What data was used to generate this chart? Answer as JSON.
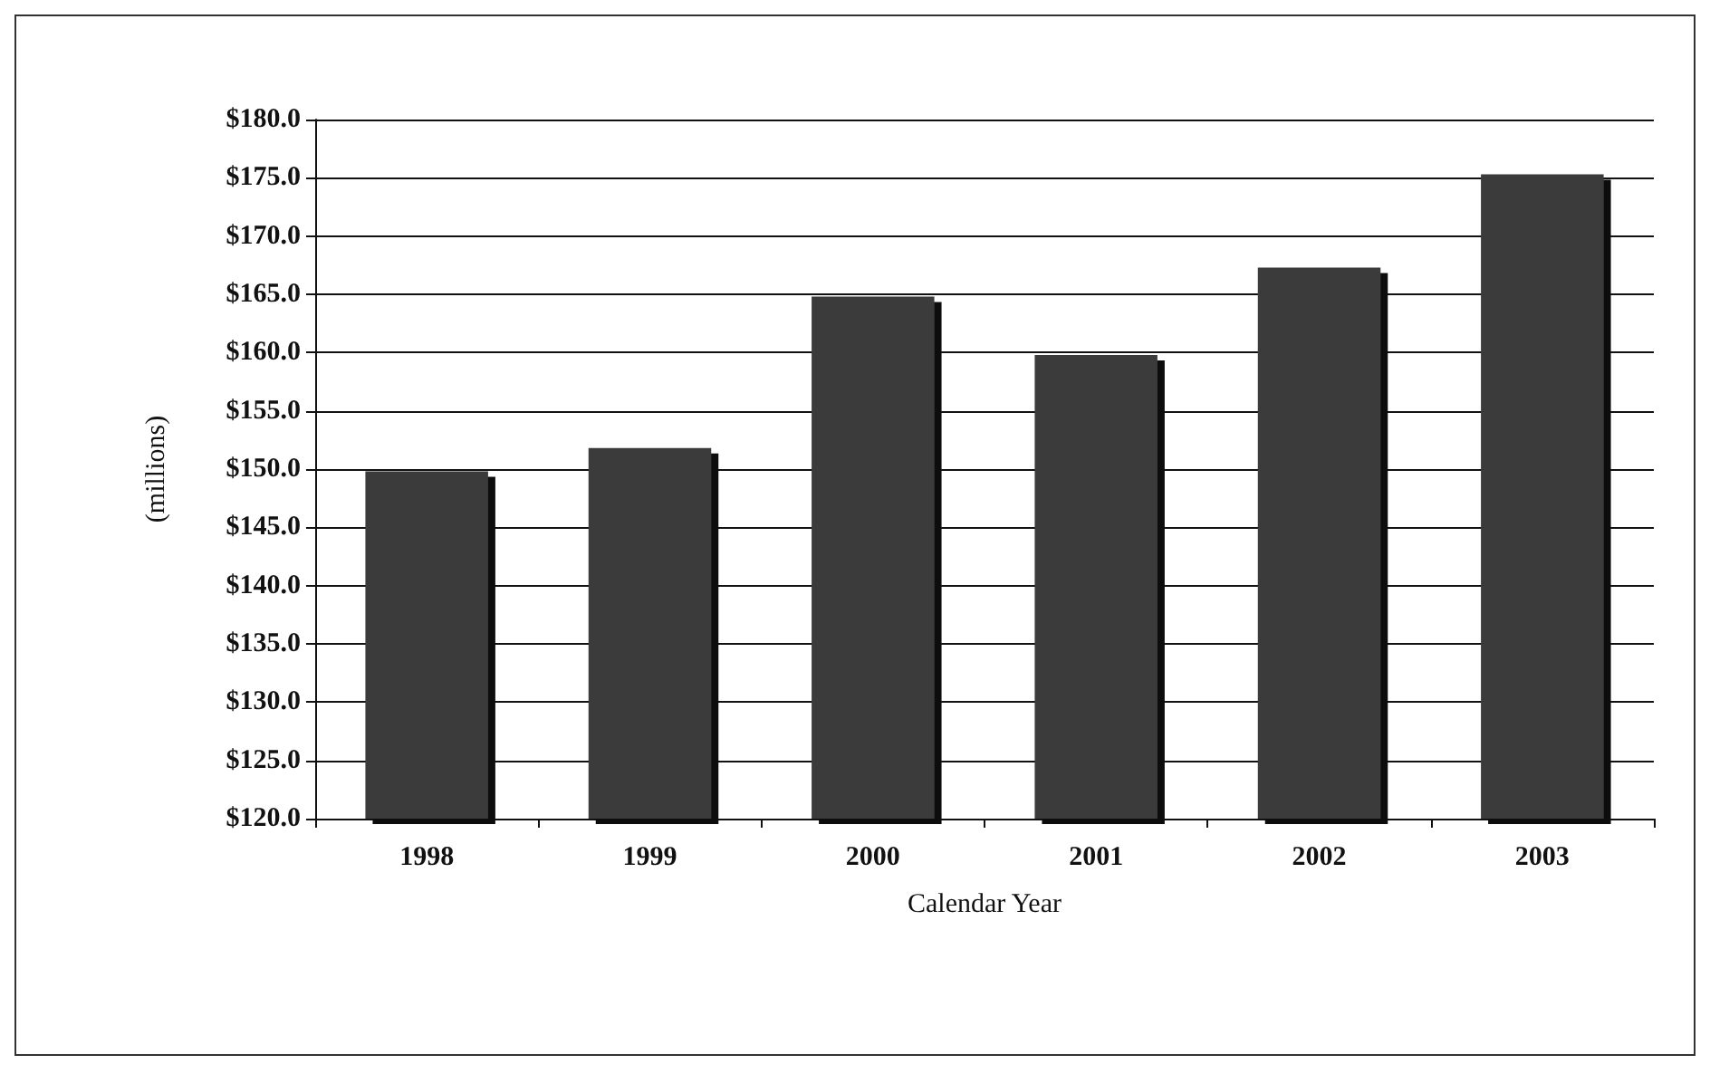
{
  "chart_data": {
    "type": "bar",
    "xlabel": "Calendar Year",
    "ylabel": "(millions)",
    "categories": [
      "1998",
      "1999",
      "2000",
      "2001",
      "2002",
      "2003"
    ],
    "values": [
      149.8,
      151.8,
      164.8,
      159.8,
      167.3,
      175.3
    ],
    "color": "#3a3a3a",
    "ylim": [
      120,
      180
    ],
    "yticks": [
      {
        "value": 120,
        "label": "$120.0"
      },
      {
        "value": 125,
        "label": "$125.0"
      },
      {
        "value": 130,
        "label": "$130.0"
      },
      {
        "value": 135,
        "label": "$135.0"
      },
      {
        "value": 140,
        "label": "$140.0"
      },
      {
        "value": 145,
        "label": "$145.0"
      },
      {
        "value": 150,
        "label": "$150.0"
      },
      {
        "value": 155,
        "label": "$155.0"
      },
      {
        "value": 160,
        "label": "$160.0"
      },
      {
        "value": 165,
        "label": "$165.0"
      },
      {
        "value": 170,
        "label": "$170.0"
      },
      {
        "value": 175,
        "label": "$175.0"
      },
      {
        "value": 180,
        "label": "$180.0"
      }
    ],
    "grid": "y"
  }
}
